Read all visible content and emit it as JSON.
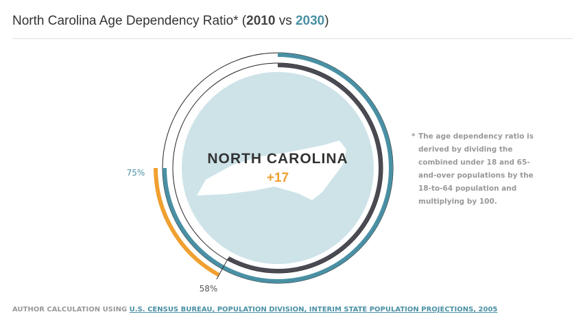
{
  "title": {
    "prefix": "North Carolina Age Dependency Ratio* (",
    "year1": "2010",
    "vs": " vs ",
    "year2": "2030",
    "suffix": ")"
  },
  "chart_data": {
    "type": "radial-bar",
    "title": "North Carolina Age Dependency Ratio* (2010 vs 2030)",
    "state": "NORTH CAROLINA",
    "change_label": "+17",
    "series": [
      {
        "name": "2010",
        "value": 58,
        "label": "58%",
        "color": "#4a4a52"
      },
      {
        "name": "2030",
        "value": 75,
        "label": "75%",
        "color": "#4a90a4"
      }
    ],
    "increase_color": "#f0a030",
    "max": 100
  },
  "note": {
    "star": "*",
    "text": "The age dependency ratio is derived by dividing the combined under 18 and 65-and-over populations by the 18-to-64 population and multiplying by 100."
  },
  "source": {
    "prefix": "AUTHOR CALCULATION USING ",
    "link": "U.S. CENSUS BUREAU, POPULATION DIVISION, INTERIM STATE POPULATION PROJECTIONS, 2005"
  }
}
